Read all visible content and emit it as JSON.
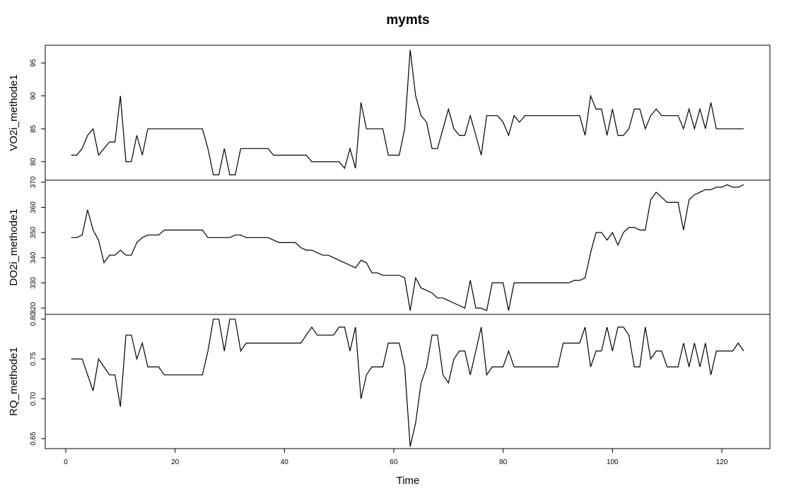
{
  "chart_data": {
    "type": "line",
    "title": "mymts",
    "x_label": "Time",
    "xlim": [
      -3.75,
      128.8
    ],
    "xticks": [
      0,
      20,
      40,
      60,
      80,
      100,
      120
    ],
    "color": "#000000",
    "x": [
      1,
      2,
      3,
      4,
      5,
      6,
      7,
      8,
      9,
      10,
      11,
      12,
      13,
      14,
      15,
      16,
      17,
      18,
      19,
      20,
      21,
      22,
      23,
      24,
      25,
      26,
      27,
      28,
      29,
      30,
      31,
      32,
      33,
      34,
      35,
      36,
      37,
      38,
      39,
      40,
      41,
      42,
      43,
      44,
      45,
      46,
      47,
      48,
      49,
      50,
      51,
      52,
      53,
      54,
      55,
      56,
      57,
      58,
      59,
      60,
      61,
      62,
      63,
      64,
      65,
      66,
      67,
      68,
      69,
      70,
      71,
      72,
      73,
      74,
      75,
      76,
      77,
      78,
      79,
      80,
      81,
      82,
      83,
      84,
      85,
      86,
      87,
      88,
      89,
      90,
      91,
      92,
      93,
      94,
      95,
      96,
      97,
      98,
      99,
      100,
      101,
      102,
      103,
      104,
      105,
      106,
      107,
      108,
      109,
      110,
      111,
      112,
      113,
      114,
      115,
      116,
      117,
      118,
      119,
      120,
      121,
      122,
      123,
      124
    ],
    "panels": [
      {
        "y_label": "VO2i_methode1",
        "ylim": [
          77.2,
          97.7
        ],
        "yticks": [
          80,
          85,
          90,
          95
        ],
        "values": [
          81,
          81,
          82,
          84,
          85,
          81,
          82,
          83,
          83,
          90,
          80,
          80,
          84,
          81,
          85,
          85,
          85,
          85,
          85,
          85,
          85,
          85,
          85,
          85,
          85,
          82,
          78,
          78,
          82,
          78,
          78,
          82,
          82,
          82,
          82,
          82,
          82,
          81,
          81,
          81,
          81,
          81,
          81,
          81,
          80,
          80,
          80,
          80,
          80,
          80,
          79,
          82,
          79,
          89,
          85,
          85,
          85,
          85,
          81,
          81,
          81,
          85,
          97,
          90,
          87,
          86,
          82,
          82,
          85,
          88,
          85,
          84,
          84,
          87,
          84,
          81,
          87,
          87,
          87,
          86,
          84,
          87,
          86,
          87,
          87,
          87,
          87,
          87,
          87,
          87,
          87,
          87,
          87,
          87,
          84,
          90,
          88,
          88,
          84,
          88,
          84,
          84,
          85,
          88,
          88,
          85,
          87,
          88,
          87,
          87,
          87,
          87,
          85,
          88,
          85,
          88,
          85,
          89,
          85,
          85,
          85,
          85,
          85,
          85
        ]
      },
      {
        "y_label": "DO2i_methode1",
        "ylim": [
          317.5,
          370.8
        ],
        "yticks": [
          320,
          330,
          340,
          350,
          360,
          370
        ],
        "values": [
          348,
          348,
          349,
          359,
          351,
          347,
          338,
          341,
          341,
          343,
          341,
          341,
          346,
          348,
          349,
          349,
          349,
          351,
          351,
          351,
          351,
          351,
          351,
          351,
          351,
          348,
          348,
          348,
          348,
          348,
          349,
          349,
          348,
          348,
          348,
          348,
          348,
          347,
          346,
          346,
          346,
          346,
          344,
          343,
          343,
          342,
          341,
          341,
          340,
          339,
          338,
          337,
          336,
          339,
          338,
          334,
          334,
          333,
          333,
          333,
          333,
          332,
          319,
          332,
          328,
          327,
          326,
          324,
          324,
          323,
          322,
          321,
          320,
          331,
          320,
          320,
          319,
          330,
          330,
          330,
          319,
          330,
          330,
          330,
          330,
          330,
          330,
          330,
          330,
          330,
          330,
          330,
          331,
          331,
          332,
          342,
          350,
          350,
          347,
          350,
          345,
          350,
          352,
          352,
          351,
          351,
          363,
          366,
          364,
          362,
          362,
          362,
          351,
          363,
          365,
          366,
          367,
          367,
          368,
          368,
          369,
          368,
          368,
          369
        ]
      },
      {
        "y_label": "RQ_methode1",
        "ylim": [
          0.6375,
          0.806
        ],
        "yticks": [
          0.65,
          {
            "value": 0.7,
            "label": "0.70"
          },
          0.75,
          {
            "value": 0.8,
            "label": "0.80"
          }
        ],
        "values": [
          0.75,
          0.75,
          0.75,
          0.73,
          0.71,
          0.75,
          0.74,
          0.73,
          0.73,
          0.69,
          0.78,
          0.78,
          0.75,
          0.77,
          0.74,
          0.74,
          0.74,
          0.73,
          0.73,
          0.73,
          0.73,
          0.73,
          0.73,
          0.73,
          0.73,
          0.76,
          0.8,
          0.8,
          0.76,
          0.8,
          0.8,
          0.76,
          0.77,
          0.77,
          0.77,
          0.77,
          0.77,
          0.77,
          0.77,
          0.77,
          0.77,
          0.77,
          0.77,
          0.78,
          0.79,
          0.78,
          0.78,
          0.78,
          0.78,
          0.79,
          0.79,
          0.76,
          0.79,
          0.7,
          0.73,
          0.74,
          0.74,
          0.74,
          0.77,
          0.77,
          0.77,
          0.74,
          0.64,
          0.67,
          0.72,
          0.74,
          0.78,
          0.78,
          0.73,
          0.72,
          0.75,
          0.76,
          0.76,
          0.73,
          0.76,
          0.79,
          0.73,
          0.74,
          0.74,
          0.74,
          0.76,
          0.74,
          0.74,
          0.74,
          0.74,
          0.74,
          0.74,
          0.74,
          0.74,
          0.74,
          0.77,
          0.77,
          0.77,
          0.77,
          0.79,
          0.74,
          0.76,
          0.76,
          0.79,
          0.76,
          0.79,
          0.79,
          0.78,
          0.74,
          0.74,
          0.79,
          0.75,
          0.76,
          0.76,
          0.74,
          0.74,
          0.74,
          0.77,
          0.74,
          0.77,
          0.74,
          0.77,
          0.73,
          0.76,
          0.76,
          0.76,
          0.76,
          0.77,
          0.76
        ]
      }
    ]
  }
}
